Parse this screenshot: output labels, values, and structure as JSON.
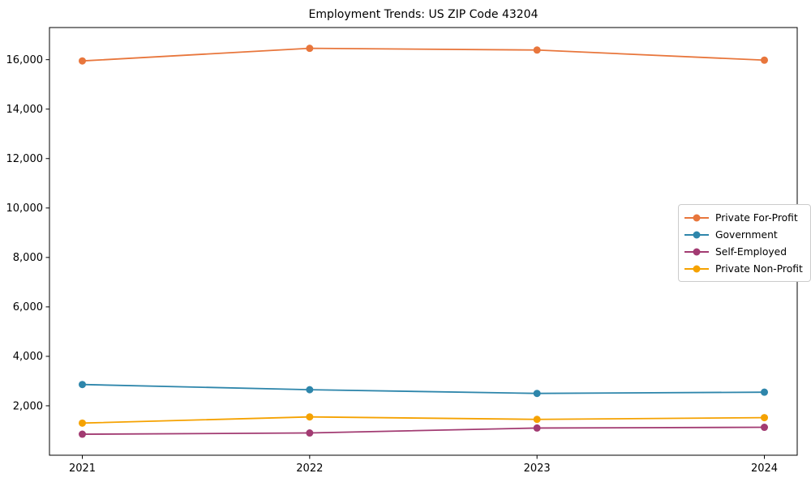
{
  "figure": {
    "background": "#ffffff",
    "frame_color": "#000000"
  },
  "chart_data": {
    "type": "line",
    "title": "Employment Trends: US ZIP Code 43204",
    "xlabel": "",
    "ylabel": "",
    "x": [
      "2021",
      "2022",
      "2023",
      "2024"
    ],
    "series": [
      {
        "name": "Private For-Profit",
        "color": "#E8763C",
        "values": [
          15950,
          16460,
          16390,
          15980
        ]
      },
      {
        "name": "Government",
        "color": "#2E86AB",
        "values": [
          2860,
          2650,
          2500,
          2550
        ]
      },
      {
        "name": "Self-Employed",
        "color": "#A23B72",
        "values": [
          850,
          900,
          1100,
          1130
        ]
      },
      {
        "name": "Private Non-Profit",
        "color": "#F5A201",
        "values": [
          1300,
          1550,
          1450,
          1520
        ]
      }
    ],
    "ylim": [
      0,
      17300
    ],
    "yticks": [
      2000,
      4000,
      6000,
      8000,
      10000,
      12000,
      14000,
      16000
    ],
    "ytick_format": "comma-thousands",
    "grid": false,
    "marker": "circle",
    "legend_position": "center-right"
  }
}
